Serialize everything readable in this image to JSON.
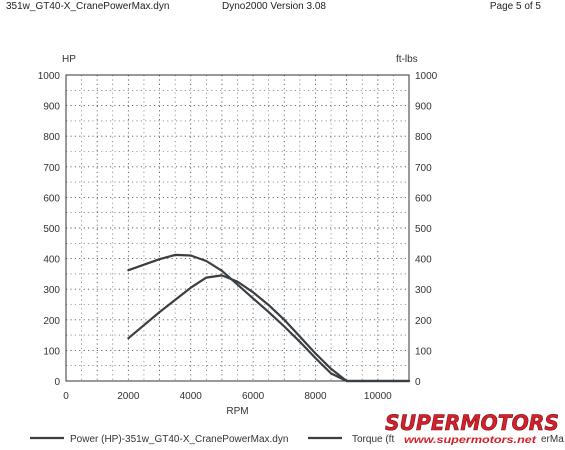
{
  "header": {
    "file": "351w_GT40-X_CranePowerMax.dyn",
    "app": "Dyno2000  Version 3.08",
    "page": "Page 5 of 5"
  },
  "chart_data": {
    "type": "line",
    "xlabel": "RPM",
    "ylabel_left": "HP",
    "ylabel_right": "ft-lbs",
    "xlim": [
      0,
      11000
    ],
    "ylim": [
      0,
      1000
    ],
    "x_ticks": [
      "0",
      "2000",
      "4000",
      "6000",
      "8000",
      "10000"
    ],
    "y_ticks": [
      "0",
      "100",
      "200",
      "300",
      "400",
      "500",
      "600",
      "700",
      "800",
      "900",
      "1000"
    ],
    "grid": true,
    "legend_placement": "bottom",
    "series": [
      {
        "name": "Power (HP)-351w_GT40-X_CranePowerMax.dyn",
        "color": "#3a3f44",
        "x": [
          2000,
          3000,
          4000,
          4500,
          5000,
          5500,
          6000,
          6500,
          7000,
          7500,
          8000,
          8500,
          9000,
          10000,
          11000
        ],
        "y": [
          140,
          225,
          305,
          338,
          345,
          325,
          290,
          248,
          200,
          145,
          90,
          40,
          0,
          0,
          0
        ]
      },
      {
        "name": "Torque (ft",
        "color": "#3a3f44",
        "x": [
          2000,
          2500,
          3000,
          3500,
          4000,
          4500,
          5000,
          5500,
          6000,
          6500,
          7000,
          7500,
          8000,
          8500,
          9000,
          10000,
          11000
        ],
        "y": [
          362,
          380,
          398,
          412,
          410,
          392,
          360,
          315,
          270,
          225,
          178,
          128,
          75,
          25,
          0,
          0,
          0
        ]
      }
    ],
    "legend_overlay_text": "erMa"
  },
  "watermark": {
    "brand": "SUPERMOTORS",
    "url": "www.supermotors.net",
    "color": "#d4202a"
  }
}
